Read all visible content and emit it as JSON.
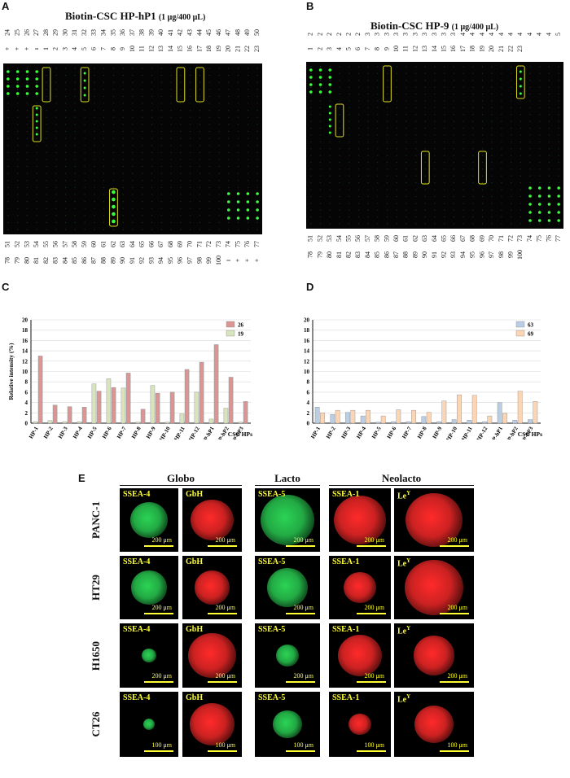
{
  "panels": {
    "A": "A",
    "B": "B",
    "C": "C",
    "D": "D",
    "E": "E"
  },
  "array_A": {
    "title": "Biotin-CSC HP-hP1",
    "title_note": "(1 μg/400 μL)",
    "top_row1": [
      "24",
      "25",
      "26",
      "27",
      "28",
      "29",
      "30",
      "31",
      "32",
      "33",
      "34",
      "35",
      "36",
      "37",
      "38",
      "39",
      "40",
      "41",
      "42",
      "43",
      "44",
      "45",
      "46",
      "47",
      "48",
      "49",
      "50"
    ],
    "top_row2": [
      "+",
      "+",
      "+",
      "ı",
      "1",
      "2",
      "3",
      "4",
      "5",
      "6",
      "7",
      "8",
      "9",
      "10",
      "11",
      "12",
      "13",
      "14",
      "15",
      "16",
      "17",
      "18",
      "19",
      "20",
      "21",
      "22",
      "23"
    ],
    "bottom_row1": [
      "51",
      "52",
      "53",
      "54",
      "55",
      "56",
      "57",
      "58",
      "59",
      "60",
      "61",
      "62",
      "63",
      "64",
      "65",
      "66",
      "67",
      "68",
      "69",
      "70",
      "71",
      "72",
      "73",
      "74",
      "75",
      "76",
      "77"
    ],
    "bottom_row2": [
      "78",
      "79",
      "80",
      "81",
      "82",
      "83",
      "84",
      "85",
      "86",
      "87",
      "88",
      "89",
      "90",
      "91",
      "92",
      "93",
      "94",
      "95",
      "96",
      "97",
      "98",
      "99",
      "100",
      "ı",
      "+",
      "+",
      "+"
    ]
  },
  "array_B": {
    "title": "Biotin-CSC HP-9",
    "title_note": "(1 μg/400 μL)",
    "top_row1": [
      "24",
      "25",
      "26",
      "27",
      "28",
      "29",
      "30",
      "31",
      "32",
      "33",
      "34",
      "35",
      "36",
      "37",
      "38",
      "39",
      "40",
      "41",
      "42",
      "43",
      "44",
      "45",
      "46",
      "47",
      "48",
      "49",
      "50"
    ],
    "top_row2": [
      "1",
      "2",
      "3",
      "4",
      "5",
      "6",
      "7",
      "8",
      "9",
      "10",
      "11",
      "12",
      "13",
      "14",
      "15",
      "16",
      "17",
      "18",
      "19",
      "20",
      "21",
      "22",
      "23"
    ],
    "bottom_row1": [
      "51",
      "52",
      "53",
      "54",
      "55",
      "56",
      "57",
      "58",
      "59",
      "60",
      "61",
      "62",
      "63",
      "64",
      "65",
      "66",
      "67",
      "68",
      "69",
      "70",
      "71",
      "72",
      "73",
      "74",
      "75",
      "76",
      "77"
    ],
    "bottom_row2": [
      "78",
      "79",
      "80",
      "81",
      "82",
      "83",
      "84",
      "85",
      "86",
      "87",
      "88",
      "89",
      "90",
      "91",
      "92",
      "93",
      "94",
      "95",
      "96",
      "97",
      "98",
      "99",
      "100"
    ]
  },
  "chart_data": [
    {
      "type": "bar",
      "panel": "C",
      "ylabel": "Relative intensity (%)",
      "xlabel": "CSC HPs",
      "ylim": [
        0,
        20
      ],
      "yticks": [
        0,
        2,
        4,
        6,
        8,
        10,
        12,
        14,
        16,
        18,
        20
      ],
      "categories": [
        "HP-1",
        "HP-2",
        "HP-3",
        "HP-4",
        "HP-5",
        "HP-6",
        "HP-7",
        "HP-8",
        "HP-9",
        "HP-10",
        "HP-11",
        "HP-12",
        "HP-hP1",
        "HP-hP2",
        "HP-hP3"
      ],
      "series": [
        {
          "name": "26",
          "color": "#d99694",
          "values": [
            13.0,
            3.5,
            3.2,
            3.1,
            6.2,
            6.9,
            9.7,
            2.7,
            5.8,
            6.0,
            10.4,
            11.8,
            15.2,
            8.9,
            4.2
          ]
        },
        {
          "name": "19",
          "color": "#d7e4bc",
          "values": [
            0.3,
            0.5,
            0.3,
            0.3,
            7.6,
            8.6,
            6.8,
            0.2,
            7.3,
            0.2,
            1.8,
            6.0,
            0.8,
            2.9,
            0.2
          ]
        }
      ]
    },
    {
      "type": "bar",
      "panel": "D",
      "ylabel": "Relative intensity (%)",
      "xlabel": "CSC HPs",
      "ylim": [
        0,
        20
      ],
      "yticks": [
        0,
        2,
        4,
        6,
        8,
        10,
        12,
        14,
        16,
        18,
        20
      ],
      "categories": [
        "HP-1",
        "HP-2",
        "HP-3",
        "HP-4",
        "HP-5",
        "HP-6",
        "HP-7",
        "HP-8",
        "HP-9",
        "HP-10",
        "HP-11",
        "HP-12",
        "HP-hP1",
        "HP-hP2",
        "HP-hP3"
      ],
      "series": [
        {
          "name": "63",
          "color": "#b9cde5",
          "values": [
            3.1,
            1.7,
            2.1,
            1.4,
            0.2,
            0.3,
            0.3,
            1.3,
            0.3,
            0.7,
            0.6,
            0.3,
            4.0,
            0.6,
            0.7
          ]
        },
        {
          "name": "69",
          "color": "#fcd5b4",
          "values": [
            2.0,
            2.5,
            2.5,
            2.5,
            1.4,
            2.6,
            2.5,
            2.1,
            4.3,
            5.5,
            5.4,
            1.4,
            1.9,
            6.2,
            4.2
          ]
        }
      ]
    }
  ],
  "panel_E": {
    "groups": [
      "Globo",
      "Lacto",
      "Neolacto"
    ],
    "rows": [
      {
        "name": "PANC-1",
        "scalebar": "200 μm"
      },
      {
        "name": "HT29",
        "scalebar": "200 μm"
      },
      {
        "name": "H1650",
        "scalebar": "200 μm"
      },
      {
        "name": "CT26",
        "scalebar": "100 μm"
      }
    ],
    "columns": [
      "SSEA-4",
      "GbH",
      "SSEA-5",
      "SSEA-1",
      "Le"
    ],
    "column_sup": [
      "",
      "",
      "",
      "",
      "Y"
    ],
    "column_colors": [
      "#2bd455",
      "#ff2a2a",
      "#2bd455",
      "#ff2a2a",
      "#ff2a2a"
    ]
  }
}
